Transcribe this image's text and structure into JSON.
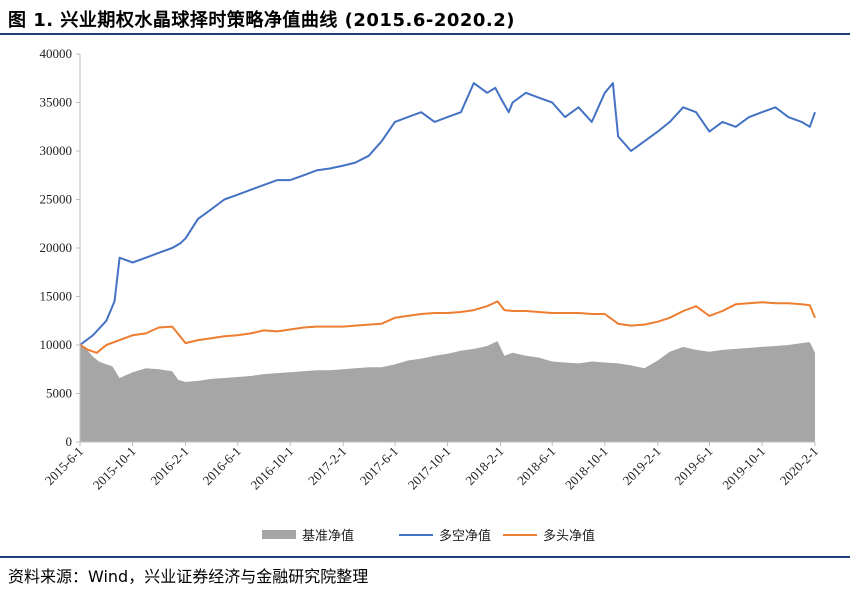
{
  "header": {
    "title": "图 1. 兴业期权水晶球择时策略净值曲线 (2015.6-2020.2)"
  },
  "footer": {
    "source": "资料来源：Wind，兴业证券经济与金融研究院整理"
  },
  "colors": {
    "benchmark": "#a6a6a6",
    "long_short": "#4472c4",
    "long_only": "#ed7d31",
    "rule": "#1f3d7a"
  },
  "chart_data": {
    "type": "area",
    "title": "",
    "xlabel": "",
    "ylabel": "",
    "ylim": [
      0,
      40000
    ],
    "yticks": [
      0,
      5000,
      10000,
      15000,
      20000,
      25000,
      30000,
      35000,
      40000
    ],
    "xticks": [
      "2015-6-1",
      "2015-10-1",
      "2016-2-1",
      "2016-6-1",
      "2016-10-1",
      "2017-2-1",
      "2017-6-1",
      "2017-10-1",
      "2018-2-1",
      "2018-6-1",
      "2018-10-1",
      "2019-2-1",
      "2019-6-1",
      "2019-10-1",
      "2020-2-1"
    ],
    "grid": false,
    "legend_position": "bottom",
    "series": [
      {
        "name": "基准净值",
        "type": "area",
        "color": "#a6a6a6",
        "x": [
          "2015-6-1",
          "2015-6-15",
          "2015-7-1",
          "2015-7-15",
          "2015-8-1",
          "2015-8-15",
          "2015-9-1",
          "2015-10-1",
          "2015-11-1",
          "2015-12-1",
          "2016-1-1",
          "2016-1-15",
          "2016-2-1",
          "2016-3-1",
          "2016-4-1",
          "2016-5-1",
          "2016-6-1",
          "2016-7-1",
          "2016-8-1",
          "2016-9-1",
          "2016-10-1",
          "2016-11-1",
          "2016-12-1",
          "2017-1-1",
          "2017-2-1",
          "2017-3-1",
          "2017-4-1",
          "2017-5-1",
          "2017-6-1",
          "2017-7-1",
          "2017-8-1",
          "2017-9-1",
          "2017-10-1",
          "2017-11-1",
          "2017-12-1",
          "2018-1-1",
          "2018-1-25",
          "2018-2-10",
          "2018-3-1",
          "2018-4-1",
          "2018-5-1",
          "2018-6-1",
          "2018-7-1",
          "2018-8-1",
          "2018-9-1",
          "2018-10-1",
          "2018-11-1",
          "2018-12-1",
          "2019-1-1",
          "2019-2-1",
          "2019-3-1",
          "2019-4-1",
          "2019-5-1",
          "2019-6-1",
          "2019-7-1",
          "2019-8-1",
          "2019-9-1",
          "2019-10-1",
          "2019-11-1",
          "2019-12-1",
          "2020-1-1",
          "2020-1-20",
          "2020-2-1"
        ],
        "values": [
          10000,
          9600,
          8800,
          8300,
          8000,
          7800,
          6600,
          7200,
          7600,
          7500,
          7300,
          6400,
          6200,
          6300,
          6500,
          6600,
          6700,
          6800,
          7000,
          7100,
          7200,
          7300,
          7400,
          7400,
          7500,
          7600,
          7700,
          7700,
          8000,
          8400,
          8600,
          8900,
          9100,
          9400,
          9600,
          9900,
          10400,
          8900,
          9200,
          8900,
          8700,
          8300,
          8200,
          8100,
          8300,
          8200,
          8100,
          7900,
          7600,
          8400,
          9300,
          9800,
          9500,
          9300,
          9500,
          9600,
          9700,
          9800,
          9900,
          10000,
          10200,
          10300,
          9200
        ]
      },
      {
        "name": "多空净值",
        "type": "line",
        "color": "#4472c4",
        "x": [
          "2015-6-1",
          "2015-7-1",
          "2015-8-1",
          "2015-8-20",
          "2015-9-1",
          "2015-10-1",
          "2015-11-1",
          "2015-12-1",
          "2016-1-1",
          "2016-1-20",
          "2016-2-1",
          "2016-3-1",
          "2016-4-1",
          "2016-5-1",
          "2016-6-1",
          "2016-7-1",
          "2016-8-1",
          "2016-9-1",
          "2016-10-1",
          "2016-11-1",
          "2016-12-1",
          "2017-1-1",
          "2017-2-1",
          "2017-3-1",
          "2017-4-1",
          "2017-5-1",
          "2017-6-1",
          "2017-7-1",
          "2017-8-1",
          "2017-9-1",
          "2017-10-1",
          "2017-11-1",
          "2017-12-1",
          "2018-1-1",
          "2018-1-20",
          "2018-2-1",
          "2018-2-20",
          "2018-3-1",
          "2018-4-1",
          "2018-5-1",
          "2018-6-1",
          "2018-7-1",
          "2018-8-1",
          "2018-9-1",
          "2018-10-1",
          "2018-10-20",
          "2018-11-1",
          "2018-12-1",
          "2019-1-1",
          "2019-2-1",
          "2019-3-1",
          "2019-4-1",
          "2019-5-1",
          "2019-6-1",
          "2019-7-1",
          "2019-8-1",
          "2019-9-1",
          "2019-10-1",
          "2019-11-1",
          "2019-12-1",
          "2020-1-1",
          "2020-1-20",
          "2020-2-1"
        ],
        "values": [
          10000,
          11000,
          12500,
          14500,
          19000,
          18500,
          19000,
          19500,
          20000,
          20500,
          21000,
          23000,
          24000,
          25000,
          25500,
          26000,
          26500,
          27000,
          27000,
          27500,
          28000,
          28200,
          28500,
          28800,
          29500,
          31000,
          33000,
          33500,
          34000,
          33000,
          33500,
          34000,
          37000,
          36000,
          36500,
          35500,
          34000,
          35000,
          36000,
          35500,
          35000,
          33500,
          34500,
          33000,
          36000,
          37000,
          31500,
          30000,
          31000,
          32000,
          33000,
          34500,
          34000,
          32000,
          33000,
          32500,
          33500,
          34000,
          34500,
          33500,
          33000,
          32500,
          34000
        ]
      },
      {
        "name": "多头净值",
        "type": "line",
        "color": "#ed7d31",
        "x": [
          "2015-6-1",
          "2015-6-20",
          "2015-7-10",
          "2015-8-1",
          "2015-9-1",
          "2015-10-1",
          "2015-11-1",
          "2015-12-1",
          "2016-1-1",
          "2016-2-1",
          "2016-3-1",
          "2016-4-1",
          "2016-5-1",
          "2016-6-1",
          "2016-7-1",
          "2016-8-1",
          "2016-9-1",
          "2016-10-1",
          "2016-11-1",
          "2016-12-1",
          "2017-1-1",
          "2017-2-1",
          "2017-3-1",
          "2017-4-1",
          "2017-5-1",
          "2017-6-1",
          "2017-7-1",
          "2017-8-1",
          "2017-9-1",
          "2017-10-1",
          "2017-11-1",
          "2017-12-1",
          "2018-1-1",
          "2018-1-25",
          "2018-2-10",
          "2018-3-1",
          "2018-4-1",
          "2018-5-1",
          "2018-6-1",
          "2018-7-1",
          "2018-8-1",
          "2018-9-1",
          "2018-10-1",
          "2018-11-1",
          "2018-12-1",
          "2019-1-1",
          "2019-2-1",
          "2019-3-1",
          "2019-4-1",
          "2019-5-1",
          "2019-6-1",
          "2019-7-1",
          "2019-8-1",
          "2019-9-1",
          "2019-10-1",
          "2019-11-1",
          "2019-12-1",
          "2020-1-1",
          "2020-1-20",
          "2020-2-1"
        ],
        "values": [
          10000,
          9500,
          9200,
          10000,
          10500,
          11000,
          11200,
          11800,
          11900,
          10200,
          10500,
          10700,
          10900,
          11000,
          11200,
          11500,
          11400,
          11600,
          11800,
          11900,
          11900,
          11900,
          12000,
          12100,
          12200,
          12800,
          13000,
          13200,
          13300,
          13300,
          13400,
          13600,
          14000,
          14500,
          13600,
          13500,
          13500,
          13400,
          13300,
          13300,
          13300,
          13200,
          13200,
          12200,
          12000,
          12100,
          12400,
          12800,
          13500,
          14000,
          13000,
          13500,
          14200,
          14300,
          14400,
          14300,
          14300,
          14200,
          14100,
          12800
        ]
      }
    ]
  }
}
